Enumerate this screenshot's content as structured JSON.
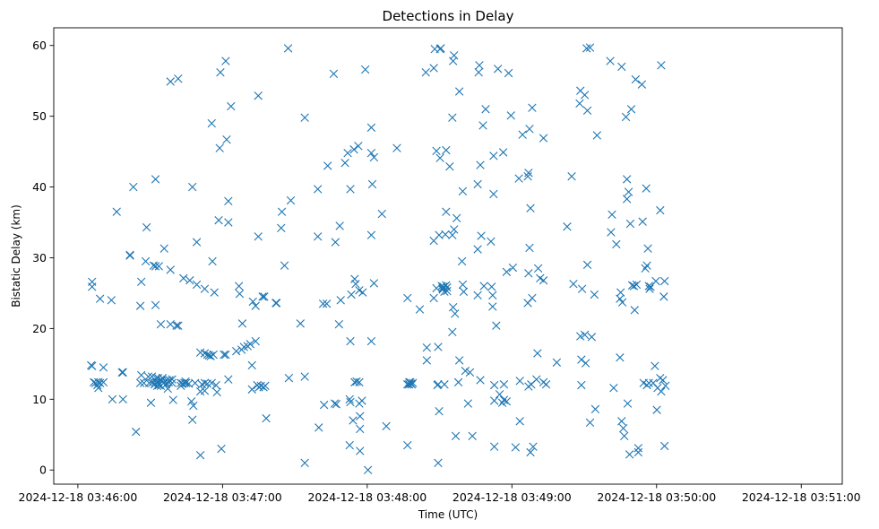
{
  "chart_data": {
    "type": "scatter",
    "title": "Detections in Delay",
    "xlabel": "Time (UTC)",
    "ylabel": "Bistatic Delay (km)",
    "marker": "x",
    "color": "#1f77b4",
    "x_unit": "seconds after 2024-12-18 03:46:00",
    "xlim": [
      -10,
      317
    ],
    "ylim": [
      -2,
      62.5
    ],
    "x_ticks": [
      {
        "value": 0,
        "label": "2024-12-18 03:46:00"
      },
      {
        "value": 60,
        "label": "2024-12-18 03:47:00"
      },
      {
        "value": 120,
        "label": "2024-12-18 03:48:00"
      },
      {
        "value": 180,
        "label": "2024-12-18 03:49:00"
      },
      {
        "value": 240,
        "label": "2024-12-18 03:50:00"
      },
      {
        "value": 300,
        "label": "2024-12-18 03:51:00"
      }
    ],
    "y_ticks": [
      {
        "value": 0,
        "label": "0"
      },
      {
        "value": 10,
        "label": "10"
      },
      {
        "value": 20,
        "label": "20"
      },
      {
        "value": 30,
        "label": "30"
      },
      {
        "value": 40,
        "label": "40"
      },
      {
        "value": 50,
        "label": "50"
      },
      {
        "value": 60,
        "label": "60"
      }
    ],
    "points": [
      [
        5.9,
        26.6
      ],
      [
        5.9,
        25.9
      ],
      [
        5.5,
        14.8
      ],
      [
        5.9,
        14.7
      ],
      [
        6.6,
        12.4
      ],
      [
        7.3,
        12.3
      ],
      [
        8.1,
        12.0
      ],
      [
        8.5,
        12.4
      ],
      [
        8.5,
        11.6
      ],
      [
        9.2,
        12.3
      ],
      [
        9.2,
        24.2
      ],
      [
        10.6,
        14.5
      ],
      [
        10.6,
        12.4
      ],
      [
        13.9,
        24.0
      ],
      [
        14.3,
        10.0
      ],
      [
        16.1,
        36.5
      ],
      [
        18.3,
        13.8
      ],
      [
        18.7,
        13.8
      ],
      [
        18.7,
        10.0
      ],
      [
        21.6,
        30.4
      ],
      [
        21.6,
        30.3
      ],
      [
        23.0,
        40.0
      ],
      [
        24.1,
        5.4
      ],
      [
        25.9,
        23.2
      ],
      [
        25.9,
        12.3
      ],
      [
        26.3,
        13.4
      ],
      [
        26.3,
        26.6
      ],
      [
        27.4,
        12.3
      ],
      [
        28.1,
        29.5
      ],
      [
        28.5,
        34.3
      ],
      [
        29.2,
        13.2
      ],
      [
        29.6,
        12.3
      ],
      [
        30.3,
        9.5
      ],
      [
        30.7,
        13.2
      ],
      [
        30.7,
        12.3
      ],
      [
        31.4,
        28.9
      ],
      [
        31.8,
        12.1
      ],
      [
        32.2,
        41.1
      ],
      [
        32.2,
        28.8
      ],
      [
        32.2,
        23.3
      ],
      [
        32.5,
        13.0
      ],
      [
        32.5,
        12.4
      ],
      [
        32.9,
        11.9
      ],
      [
        33.3,
        12.4
      ],
      [
        33.3,
        13.0
      ],
      [
        33.6,
        28.8
      ],
      [
        33.6,
        12.0
      ],
      [
        34.4,
        20.6
      ],
      [
        34.4,
        11.9
      ],
      [
        34.7,
        12.7
      ],
      [
        35.1,
        13.0
      ],
      [
        35.5,
        12.3
      ],
      [
        35.8,
        31.3
      ],
      [
        36.2,
        12.5
      ],
      [
        36.6,
        12.1
      ],
      [
        36.9,
        12.7
      ],
      [
        37.3,
        11.5
      ],
      [
        37.7,
        12.4
      ],
      [
        38.0,
        12.7
      ],
      [
        38.4,
        54.9
      ],
      [
        38.4,
        28.3
      ],
      [
        38.4,
        20.6
      ],
      [
        39.1,
        12.3
      ],
      [
        39.1,
        12.8
      ],
      [
        39.5,
        9.9
      ],
      [
        40.9,
        20.4
      ],
      [
        41.6,
        20.4
      ],
      [
        41.6,
        55.3
      ],
      [
        42.7,
        12.3
      ],
      [
        42.7,
        11.9
      ],
      [
        43.5,
        12.2
      ],
      [
        43.8,
        27.1
      ],
      [
        44.2,
        12.3
      ],
      [
        44.6,
        12.5
      ],
      [
        44.9,
        12.3
      ],
      [
        46.0,
        12.2
      ],
      [
        46.4,
        26.8
      ],
      [
        47.1,
        9.7
      ],
      [
        47.5,
        40.0
      ],
      [
        47.5,
        7.1
      ],
      [
        47.9,
        9.1
      ],
      [
        48.6,
        12.3
      ],
      [
        49.3,
        32.2
      ],
      [
        49.3,
        26.2
      ],
      [
        50.8,
        16.6
      ],
      [
        50.8,
        11.1
      ],
      [
        50.8,
        2.1
      ],
      [
        51.5,
        12.1
      ],
      [
        52.6,
        16.5
      ],
      [
        52.6,
        12.3
      ],
      [
        52.6,
        11.2
      ],
      [
        52.6,
        25.6
      ],
      [
        53.7,
        16.3
      ],
      [
        53.7,
        12.2
      ],
      [
        54.4,
        16.2
      ],
      [
        55.1,
        16.1
      ],
      [
        55.5,
        12.3
      ],
      [
        55.5,
        49.0
      ],
      [
        55.8,
        29.5
      ],
      [
        56.2,
        16.3
      ],
      [
        56.6,
        25.1
      ],
      [
        57.3,
        12.0
      ],
      [
        57.7,
        11.0
      ],
      [
        58.4,
        35.3
      ],
      [
        58.8,
        45.5
      ],
      [
        59.1,
        56.2
      ],
      [
        59.5,
        3.0
      ],
      [
        60.6,
        16.3
      ],
      [
        61.3,
        16.3
      ],
      [
        61.3,
        57.8
      ],
      [
        61.7,
        46.7
      ],
      [
        62.4,
        12.8
      ],
      [
        62.4,
        35.0
      ],
      [
        62.4,
        38.0
      ],
      [
        63.5,
        51.4
      ],
      [
        65.7,
        16.8
      ],
      [
        66.8,
        26.0
      ],
      [
        67.1,
        24.9
      ],
      [
        67.9,
        17.0
      ],
      [
        68.2,
        20.7
      ],
      [
        68.9,
        17.4
      ],
      [
        70.4,
        17.5
      ],
      [
        71.5,
        17.8
      ],
      [
        72.2,
        14.8
      ],
      [
        72.2,
        11.4
      ],
      [
        72.6,
        23.8
      ],
      [
        73.7,
        23.2
      ],
      [
        73.7,
        18.2
      ],
      [
        74.4,
        12.0
      ],
      [
        74.8,
        33.0
      ],
      [
        74.8,
        52.9
      ],
      [
        75.1,
        11.7
      ],
      [
        75.9,
        11.9
      ],
      [
        76.6,
        24.5
      ],
      [
        77.0,
        11.7
      ],
      [
        77.3,
        24.5
      ],
      [
        77.7,
        11.9
      ],
      [
        78.1,
        7.3
      ],
      [
        82.1,
        23.6
      ],
      [
        82.4,
        23.6
      ],
      [
        84.3,
        34.2
      ],
      [
        84.6,
        36.5
      ],
      [
        85.7,
        28.9
      ],
      [
        87.2,
        59.6
      ],
      [
        87.5,
        13.0
      ],
      [
        88.3,
        38.1
      ],
      [
        92.3,
        20.7
      ],
      [
        94.1,
        1.0
      ],
      [
        94.1,
        49.8
      ],
      [
        94.1,
        13.2
      ],
      [
        99.5,
        39.7
      ],
      [
        99.5,
        33.0
      ],
      [
        99.9,
        6.0
      ],
      [
        101.7,
        23.5
      ],
      [
        102.1,
        9.2
      ],
      [
        103.2,
        23.5
      ],
      [
        103.6,
        43.0
      ],
      [
        106.1,
        56.0
      ],
      [
        106.5,
        9.4
      ],
      [
        106.8,
        32.2
      ],
      [
        107.2,
        9.3
      ],
      [
        108.3,
        20.6
      ],
      [
        108.6,
        34.5
      ],
      [
        109.0,
        24.0
      ],
      [
        110.8,
        43.4
      ],
      [
        111.9,
        44.8
      ],
      [
        112.7,
        10.0
      ],
      [
        112.7,
        3.5
      ],
      [
        113.0,
        18.2
      ],
      [
        113.0,
        9.6
      ],
      [
        113.0,
        39.7
      ],
      [
        113.4,
        24.8
      ],
      [
        114.1,
        7.0
      ],
      [
        114.5,
        45.3
      ],
      [
        114.8,
        27.0
      ],
      [
        114.8,
        12.4
      ],
      [
        115.2,
        26.3
      ],
      [
        115.6,
        12.5
      ],
      [
        116.3,
        45.8
      ],
      [
        116.7,
        25.4
      ],
      [
        116.7,
        12.4
      ],
      [
        116.7,
        9.4
      ],
      [
        117.0,
        7.6
      ],
      [
        117.0,
        5.8
      ],
      [
        117.0,
        2.7
      ],
      [
        117.8,
        9.8
      ],
      [
        118.1,
        25.1
      ],
      [
        119.2,
        56.6
      ],
      [
        120.3,
        0.0
      ],
      [
        121.7,
        33.2
      ],
      [
        121.7,
        48.4
      ],
      [
        121.7,
        18.2
      ],
      [
        121.7,
        44.8
      ],
      [
        122.1,
        40.4
      ],
      [
        122.8,
        44.2
      ],
      [
        122.8,
        26.4
      ],
      [
        126.1,
        36.2
      ],
      [
        127.9,
        6.2
      ],
      [
        132.3,
        45.5
      ],
      [
        136.7,
        24.3
      ],
      [
        136.7,
        12.1
      ],
      [
        136.7,
        12.1
      ],
      [
        136.7,
        3.5
      ],
      [
        137.4,
        12.1
      ],
      [
        137.4,
        12.4
      ],
      [
        137.8,
        12.4
      ],
      [
        138.1,
        12.2
      ],
      [
        138.5,
        12.1
      ],
      [
        138.9,
        12.3
      ],
      [
        141.8,
        22.7
      ],
      [
        144.3,
        56.2
      ],
      [
        144.7,
        17.3
      ],
      [
        144.7,
        15.5
      ],
      [
        147.6,
        32.4
      ],
      [
        147.6,
        24.3
      ],
      [
        147.6,
        56.8
      ],
      [
        148.0,
        59.5
      ],
      [
        148.7,
        45.1
      ],
      [
        148.7,
        25.7
      ],
      [
        149.1,
        12.0
      ],
      [
        149.4,
        17.4
      ],
      [
        149.4,
        12.1
      ],
      [
        149.4,
        1.0
      ],
      [
        149.8,
        8.3
      ],
      [
        149.8,
        33.2
      ],
      [
        150.2,
        44.1
      ],
      [
        150.2,
        59.5
      ],
      [
        150.5,
        59.6
      ],
      [
        150.9,
        26.0
      ],
      [
        151.3,
        25.7
      ],
      [
        151.3,
        25.5
      ],
      [
        151.6,
        25.9
      ],
      [
        152.0,
        25.2
      ],
      [
        152.0,
        12.1
      ],
      [
        152.4,
        33.3
      ],
      [
        152.7,
        45.2
      ],
      [
        152.7,
        36.5
      ],
      [
        152.7,
        26.1
      ],
      [
        153.1,
        25.8
      ],
      [
        153.1,
        25.3
      ],
      [
        154.2,
        42.9
      ],
      [
        155.3,
        49.8
      ],
      [
        155.3,
        33.2
      ],
      [
        155.3,
        19.5
      ],
      [
        155.6,
        57.8
      ],
      [
        155.6,
        23.0
      ],
      [
        156.0,
        58.6
      ],
      [
        156.0,
        34.0
      ],
      [
        156.4,
        22.1
      ],
      [
        156.7,
        4.8
      ],
      [
        157.1,
        35.6
      ],
      [
        157.8,
        12.4
      ],
      [
        158.2,
        53.5
      ],
      [
        158.2,
        15.5
      ],
      [
        159.3,
        29.5
      ],
      [
        159.6,
        39.4
      ],
      [
        159.6,
        26.2
      ],
      [
        160.0,
        25.2
      ],
      [
        160.7,
        14.0
      ],
      [
        161.8,
        9.4
      ],
      [
        162.6,
        13.8
      ],
      [
        163.6,
        4.8
      ],
      [
        165.8,
        31.2
      ],
      [
        165.8,
        40.4
      ],
      [
        165.8,
        24.7
      ],
      [
        166.2,
        56.2
      ],
      [
        166.5,
        57.2
      ],
      [
        166.9,
        43.1
      ],
      [
        166.9,
        12.7
      ],
      [
        167.3,
        33.1
      ],
      [
        168.0,
        48.7
      ],
      [
        168.4,
        26.0
      ],
      [
        169.1,
        51.0
      ],
      [
        171.3,
        32.3
      ],
      [
        171.6,
        25.9
      ],
      [
        172.0,
        24.7
      ],
      [
        172.0,
        23.1
      ],
      [
        172.4,
        39.0
      ],
      [
        172.4,
        44.4
      ],
      [
        172.7,
        12.0
      ],
      [
        172.7,
        9.8
      ],
      [
        172.7,
        3.3
      ],
      [
        173.5,
        20.4
      ],
      [
        174.2,
        56.7
      ],
      [
        174.9,
        10.7
      ],
      [
        176.0,
        9.5
      ],
      [
        176.4,
        44.9
      ],
      [
        176.7,
        9.9
      ],
      [
        176.7,
        12.1
      ],
      [
        177.8,
        9.7
      ],
      [
        177.8,
        28.0
      ],
      [
        178.6,
        56.1
      ],
      [
        179.6,
        50.1
      ],
      [
        180.4,
        28.6
      ],
      [
        181.5,
        3.2
      ],
      [
        182.9,
        41.2
      ],
      [
        183.3,
        12.6
      ],
      [
        183.3,
        6.9
      ],
      [
        184.4,
        47.4
      ],
      [
        186.6,
        23.6
      ],
      [
        186.6,
        41.5
      ],
      [
        186.9,
        42.0
      ],
      [
        186.9,
        27.8
      ],
      [
        186.9,
        11.8
      ],
      [
        187.3,
        48.2
      ],
      [
        187.3,
        31.4
      ],
      [
        187.7,
        37.0
      ],
      [
        187.7,
        2.5
      ],
      [
        188.0,
        12.1
      ],
      [
        188.4,
        51.2
      ],
      [
        188.4,
        24.3
      ],
      [
        188.8,
        3.3
      ],
      [
        190.2,
        12.8
      ],
      [
        190.6,
        16.5
      ],
      [
        190.9,
        28.5
      ],
      [
        191.7,
        27.1
      ],
      [
        193.1,
        26.8
      ],
      [
        193.1,
        46.9
      ],
      [
        193.1,
        12.4
      ],
      [
        194.2,
        12.1
      ],
      [
        198.6,
        15.2
      ],
      [
        202.9,
        34.4
      ],
      [
        204.8,
        41.5
      ],
      [
        205.5,
        26.3
      ],
      [
        208.1,
        51.8
      ],
      [
        208.4,
        53.6
      ],
      [
        208.4,
        18.9
      ],
      [
        208.8,
        15.6
      ],
      [
        208.8,
        12.0
      ],
      [
        209.1,
        25.6
      ],
      [
        210.2,
        53.0
      ],
      [
        210.2,
        19.1
      ],
      [
        210.6,
        15.1
      ],
      [
        211.0,
        59.6
      ],
      [
        211.3,
        29.0
      ],
      [
        211.3,
        50.8
      ],
      [
        212.4,
        59.7
      ],
      [
        212.4,
        6.7
      ],
      [
        213.1,
        18.8
      ],
      [
        214.2,
        24.8
      ],
      [
        214.6,
        8.6
      ],
      [
        215.3,
        47.3
      ],
      [
        220.8,
        57.8
      ],
      [
        221.1,
        33.6
      ],
      [
        221.5,
        36.1
      ],
      [
        222.2,
        11.6
      ],
      [
        223.3,
        31.9
      ],
      [
        224.8,
        15.9
      ],
      [
        224.8,
        24.2
      ],
      [
        225.1,
        25.1
      ],
      [
        225.5,
        57.0
      ],
      [
        225.5,
        6.9
      ],
      [
        225.8,
        23.7
      ],
      [
        226.2,
        5.9
      ],
      [
        226.6,
        4.8
      ],
      [
        227.3,
        49.9
      ],
      [
        227.7,
        41.1
      ],
      [
        227.7,
        38.3
      ],
      [
        228.0,
        9.4
      ],
      [
        228.4,
        39.3
      ],
      [
        228.8,
        2.2
      ],
      [
        229.1,
        34.8
      ],
      [
        229.5,
        51.0
      ],
      [
        229.9,
        26.1
      ],
      [
        230.6,
        26.0
      ],
      [
        230.9,
        22.6
      ],
      [
        231.3,
        55.2
      ],
      [
        231.7,
        26.2
      ],
      [
        232.4,
        3.1
      ],
      [
        232.4,
        2.5
      ],
      [
        233.9,
        54.5
      ],
      [
        234.2,
        35.1
      ],
      [
        234.6,
        12.3
      ],
      [
        235.3,
        28.5
      ],
      [
        235.7,
        39.8
      ],
      [
        236.0,
        28.9
      ],
      [
        236.0,
        12.0
      ],
      [
        236.4,
        31.3
      ],
      [
        236.8,
        26.0
      ],
      [
        236.8,
        12.3
      ],
      [
        237.1,
        25.6
      ],
      [
        237.5,
        25.9
      ],
      [
        238.6,
        12.3
      ],
      [
        239.3,
        14.7
      ],
      [
        239.7,
        26.7
      ],
      [
        240.1,
        8.5
      ],
      [
        240.4,
        11.6
      ],
      [
        241.9,
        57.2
      ],
      [
        241.5,
        36.7
      ],
      [
        241.5,
        13.0
      ],
      [
        241.9,
        11.1
      ],
      [
        242.6,
        12.7
      ],
      [
        243.0,
        24.5
      ],
      [
        243.3,
        3.4
      ],
      [
        243.3,
        26.7
      ],
      [
        243.7,
        11.9
      ]
    ]
  }
}
